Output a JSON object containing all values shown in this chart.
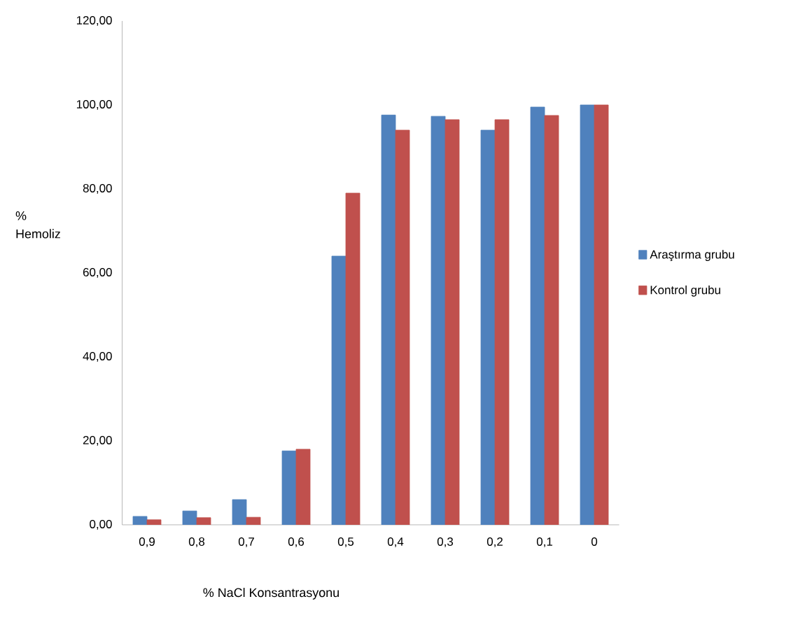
{
  "chart_data": {
    "type": "bar",
    "xlabel": "% NaCl Konsantrasyonu",
    "ylabel": "% Hemoliz",
    "categories": [
      "0,9",
      "0,8",
      "0,7",
      "0,6",
      "0,5",
      "0,4",
      "0,3",
      "0,2",
      "0,1",
      "0"
    ],
    "series": [
      {
        "name": "Araştırma grubu",
        "color": "#4f81bd",
        "values": [
          2.0,
          3.3,
          6.0,
          17.6,
          64.0,
          97.6,
          97.3,
          94.0,
          99.5,
          100.0
        ]
      },
      {
        "name": "Kontrol grubu",
        "color": "#c0504d",
        "values": [
          1.2,
          1.7,
          1.8,
          18.0,
          79.0,
          94.0,
          96.5,
          96.5,
          97.5,
          100.0
        ]
      }
    ],
    "ylim": [
      0,
      120
    ],
    "yticks": [
      {
        "value": 0,
        "label": "0,00"
      },
      {
        "value": 20,
        "label": "20,00"
      },
      {
        "value": 40,
        "label": "40,00"
      },
      {
        "value": 60,
        "label": "60,00"
      },
      {
        "value": 80,
        "label": "80,00"
      },
      {
        "value": 100,
        "label": "100,00"
      },
      {
        "value": 120,
        "label": "120,00"
      }
    ],
    "legend": "right"
  }
}
